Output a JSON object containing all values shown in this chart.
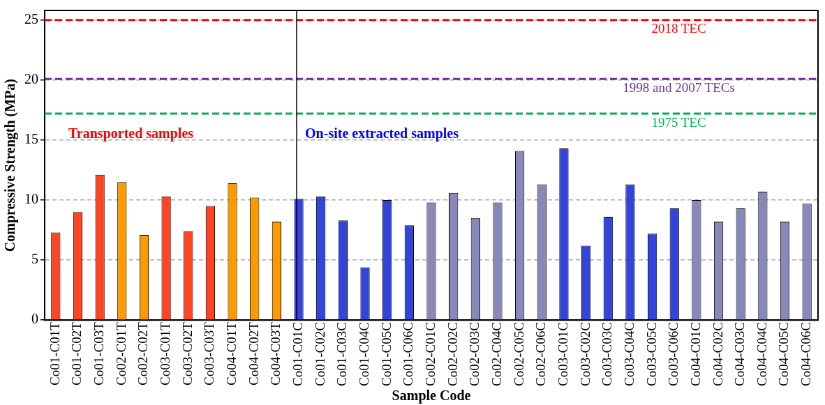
{
  "chart_data": {
    "type": "bar",
    "xlabel": "Sample Code",
    "ylabel": "Compressive Strength (MPa)",
    "categories": [
      "Co01-C01T",
      "Co01-C02T",
      "Co01-C03T",
      "Co02-C01T",
      "Co02-C02T",
      "Co03-C01T",
      "Co03-C02T",
      "Co03-C03T",
      "Co04-C01T",
      "Co04-C02T",
      "Co04-C03T",
      "Co01-C01C",
      "Co01-C02C",
      "Co01-C03C",
      "Co01-C04C",
      "Co01-C05C",
      "Co01-C06C",
      "Co02-C01C",
      "Co02-C02C",
      "Co02-C03C",
      "Co02-C04C",
      "Co02-C05C",
      "Co02-C06C",
      "Co03-C01C",
      "Co03-C02C",
      "Co03-C03C",
      "Co03-C04C",
      "Co03-C05C",
      "Co03-C06C",
      "Co04-C01C",
      "Co04-C02C",
      "Co04-C03C",
      "Co04-C04C",
      "Co04-C05C",
      "Co04-C06C"
    ],
    "values": [
      7.3,
      9.0,
      12.1,
      11.5,
      7.1,
      10.3,
      7.4,
      9.5,
      11.4,
      10.2,
      8.2,
      10.1,
      10.3,
      8.3,
      4.4,
      10.0,
      7.9,
      9.8,
      10.6,
      8.5,
      9.8,
      14.1,
      11.3,
      14.3,
      6.2,
      8.6,
      11.3,
      7.2,
      9.3,
      10.0,
      8.2,
      9.3,
      10.7,
      8.2,
      9.7
    ],
    "colors": [
      "#ff4422",
      "#ff4422",
      "#ff4422",
      "#ff9900",
      "#ff9900",
      "#ff4422",
      "#ff4422",
      "#ff4422",
      "#ff9900",
      "#ff9900",
      "#ff9900",
      "#3344dd",
      "#3344dd",
      "#3344dd",
      "#3344dd",
      "#3344dd",
      "#3344dd",
      "#8888bb",
      "#8888bb",
      "#8888bb",
      "#8888bb",
      "#8888bb",
      "#8888bb",
      "#3344dd",
      "#3344dd",
      "#3344dd",
      "#3344dd",
      "#3344dd",
      "#3344dd",
      "#8888bb",
      "#8888bb",
      "#8888bb",
      "#8888bb",
      "#8888bb",
      "#8888bb"
    ],
    "ylim": [
      0,
      25.8
    ],
    "yticks": [
      0,
      5,
      10,
      15,
      20,
      25
    ],
    "grid": "y",
    "legend": false,
    "ref_lines": [
      {
        "axis": "y",
        "value": 25,
        "label": "2018 TEC",
        "color": "#ff0000",
        "line_style": "dashed"
      },
      {
        "axis": "y",
        "value": 20.1,
        "label": "1998 and 2007 TECs",
        "color": "#7030a0",
        "line_style": "dashed"
      },
      {
        "axis": "y",
        "value": 17.2,
        "label": "1975 TEC",
        "color": "#00b050",
        "line_style": "dashed"
      },
      {
        "axis": "x",
        "value": "Co01-C01C",
        "color": "#000000",
        "line_style": "solid"
      }
    ],
    "annotations": [
      "Transported samples",
      "On-site extracted samples"
    ]
  }
}
